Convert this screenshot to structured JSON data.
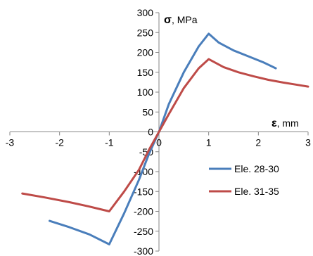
{
  "chart_data": {
    "type": "line",
    "x_axis": {
      "label_symbol": "ε",
      "label_unit": ", mm",
      "range": [
        -3,
        3
      ],
      "ticks": [
        -3,
        -2,
        -1,
        0,
        1,
        2,
        3
      ],
      "tick_labels": [
        "-3",
        "-2",
        "-1",
        "0",
        "1",
        "2",
        "3"
      ]
    },
    "y_axis": {
      "label_symbol": "σ",
      "label_unit": ", MPa",
      "range": [
        -300,
        300
      ],
      "ticks": [
        300,
        250,
        200,
        150,
        100,
        50,
        0,
        -50,
        -100,
        -150,
        -200,
        -250,
        -300
      ],
      "tick_labels": [
        "300",
        "250",
        "200",
        "150",
        "100",
        "50",
        "0",
        "-50",
        "-100",
        "-150",
        "-200",
        "-250",
        "-300"
      ]
    },
    "grid": false,
    "legend_position": "right",
    "series": [
      {
        "name": "Ele. 28-30",
        "color": "#4a7ebb",
        "points": [
          [
            -2.2,
            -224
          ],
          [
            -1.8,
            -240
          ],
          [
            -1.4,
            -258
          ],
          [
            -1.0,
            -283
          ],
          [
            -0.7,
            -205
          ],
          [
            -0.4,
            -120
          ],
          [
            -0.2,
            -55
          ],
          [
            0,
            0
          ],
          [
            0.2,
            70
          ],
          [
            0.5,
            150
          ],
          [
            0.8,
            215
          ],
          [
            1.0,
            247
          ],
          [
            1.2,
            225
          ],
          [
            1.5,
            205
          ],
          [
            1.8,
            190
          ],
          [
            2.1,
            175
          ],
          [
            2.35,
            160
          ]
        ]
      },
      {
        "name": "Ele. 31-35",
        "color": "#be4b48",
        "points": [
          [
            -2.75,
            -155
          ],
          [
            -2.3,
            -165
          ],
          [
            -1.8,
            -177
          ],
          [
            -1.4,
            -188
          ],
          [
            -1.0,
            -200
          ],
          [
            -0.7,
            -150
          ],
          [
            -0.4,
            -95
          ],
          [
            -0.2,
            -45
          ],
          [
            0,
            0
          ],
          [
            0.2,
            45
          ],
          [
            0.5,
            110
          ],
          [
            0.8,
            160
          ],
          [
            1.0,
            183
          ],
          [
            1.3,
            163
          ],
          [
            1.6,
            150
          ],
          [
            1.9,
            140
          ],
          [
            2.2,
            131
          ],
          [
            2.5,
            124
          ],
          [
            2.8,
            118
          ],
          [
            3.0,
            114
          ]
        ]
      }
    ]
  }
}
